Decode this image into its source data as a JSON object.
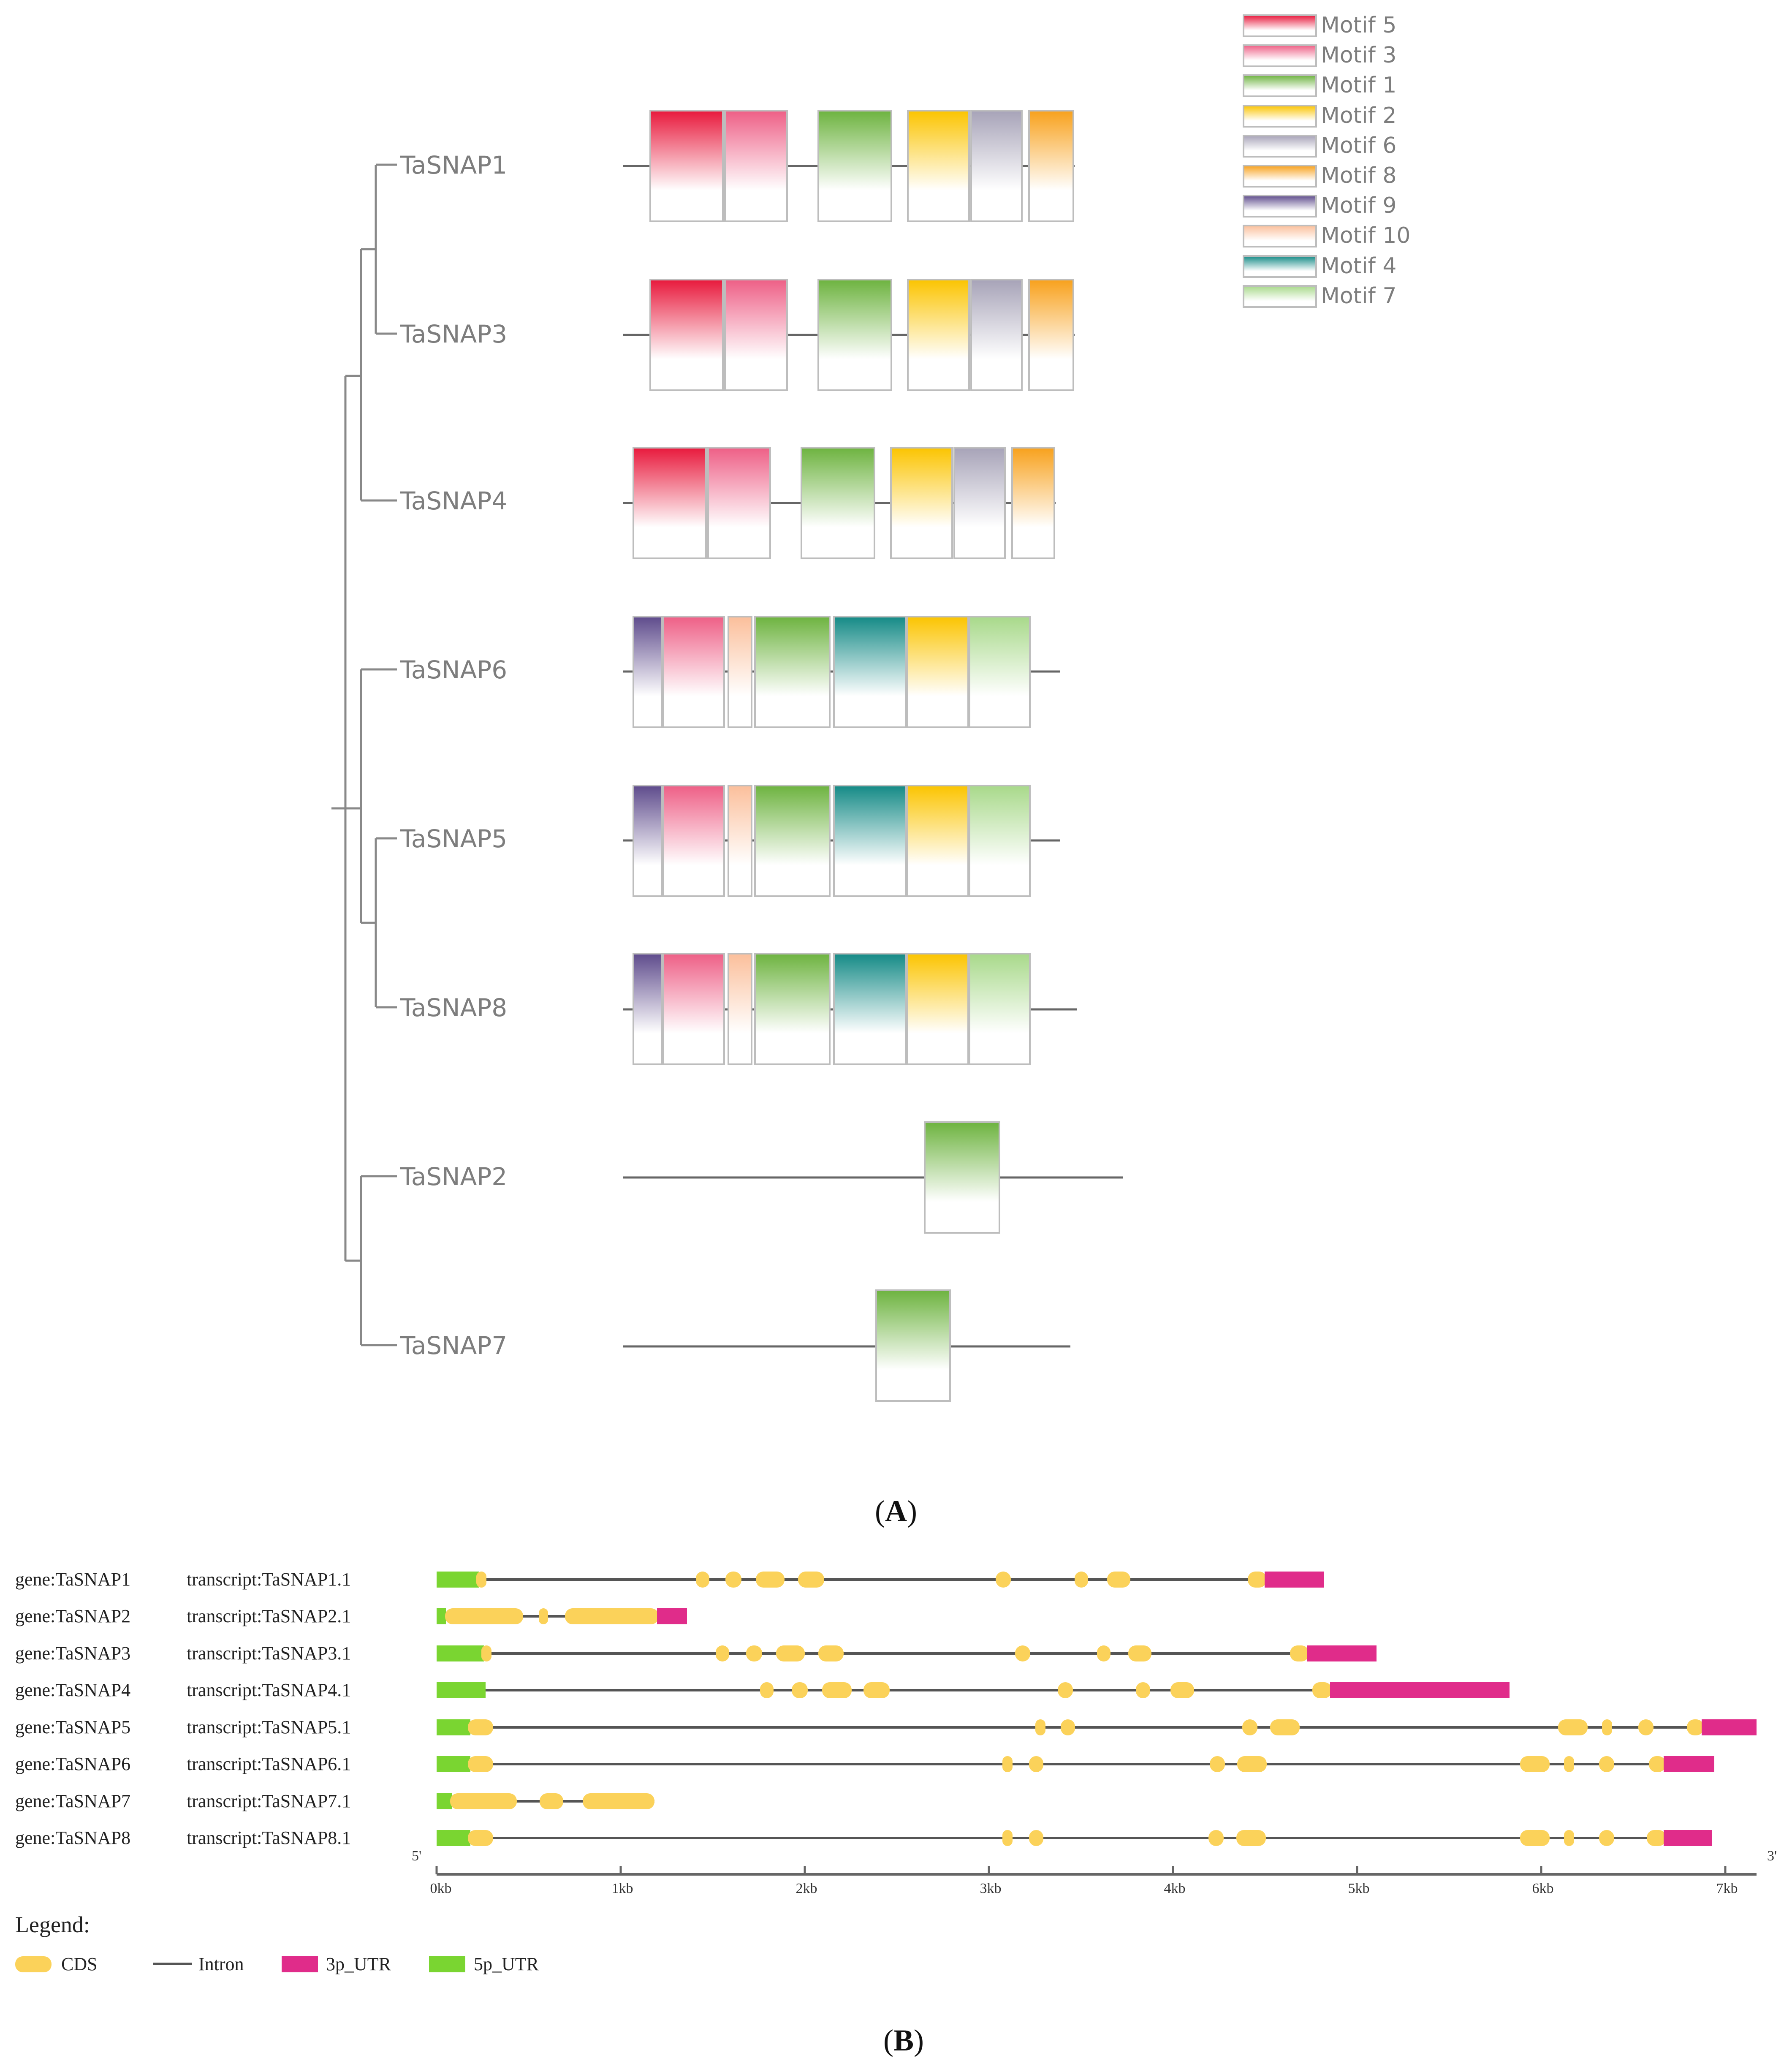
{
  "panelA": {
    "caption_open": "(",
    "caption_letter": "A",
    "caption_close": ")",
    "genes": [
      "TaSNAP1",
      "TaSNAP3",
      "TaSNAP4",
      "TaSNAP6",
      "TaSNAP5",
      "TaSNAP8",
      "TaSNAP2",
      "TaSNAP7"
    ],
    "legend": [
      {
        "name": "Motif 5",
        "color": "#e8193c"
      },
      {
        "name": "Motif 3",
        "color": "#ee5f86"
      },
      {
        "name": "Motif 1",
        "color": "#6db33f"
      },
      {
        "name": "Motif 2",
        "color": "#fbc400"
      },
      {
        "name": "Motif 6",
        "color": "#a7a3b8"
      },
      {
        "name": "Motif 8",
        "color": "#f8a11c"
      },
      {
        "name": "Motif 9",
        "color": "#5e4b8c"
      },
      {
        "name": "Motif 10",
        "color": "#fbbf9b"
      },
      {
        "name": "Motif 4",
        "color": "#148a86"
      },
      {
        "name": "Motif 7",
        "color": "#a8d98a"
      }
    ]
  },
  "panelB": {
    "caption_open": "(",
    "caption_letter": "B",
    "caption_close": ")",
    "rows": [
      {
        "gene": "gene:TaSNAP1",
        "transcript": "transcript:TaSNAP1.1"
      },
      {
        "gene": "gene:TaSNAP2",
        "transcript": "transcript:TaSNAP2.1"
      },
      {
        "gene": "gene:TaSNAP3",
        "transcript": "transcript:TaSNAP3.1"
      },
      {
        "gene": "gene:TaSNAP4",
        "transcript": "transcript:TaSNAP4.1"
      },
      {
        "gene": "gene:TaSNAP5",
        "transcript": "transcript:TaSNAP5.1"
      },
      {
        "gene": "gene:TaSNAP6",
        "transcript": "transcript:TaSNAP6.1"
      },
      {
        "gene": "gene:TaSNAP7",
        "transcript": "transcript:TaSNAP7.1"
      },
      {
        "gene": "gene:TaSNAP8",
        "transcript": "transcript:TaSNAP8.1"
      }
    ],
    "axis_ticks": [
      "0kb",
      "1kb",
      "2kb",
      "3kb",
      "4kb",
      "5kb",
      "6kb",
      "7kb"
    ],
    "end_5": "5'",
    "end_3": "3'",
    "legend_title": "Legend:",
    "legend": [
      {
        "name": "CDS",
        "color": "#fbd25a"
      },
      {
        "name": "Intron",
        "color": "#555555"
      },
      {
        "name": "3p_UTR",
        "color": "#e02c8a"
      },
      {
        "name": "5p_UTR",
        "color": "#7ad531"
      }
    ]
  }
}
